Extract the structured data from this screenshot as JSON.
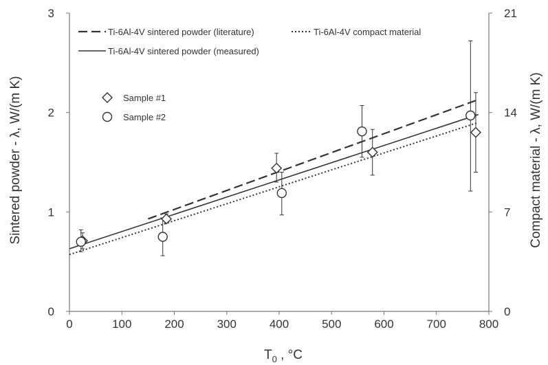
{
  "chart_data": {
    "type": "scatter",
    "xlabel_main": "T",
    "xlabel_sub": "0",
    "xlabel_rest": " , °C",
    "ylabel_left": "Sintered powder - λ, W/(m K)",
    "ylabel_right": "Compact material - λ, W/(m K)",
    "xlim": [
      0,
      800
    ],
    "ylim_left": [
      0,
      3
    ],
    "ylim_right": [
      0,
      21
    ],
    "x_ticks": [
      0,
      100,
      200,
      300,
      400,
      500,
      600,
      700,
      800
    ],
    "y_ticks_left": [
      0,
      1,
      2,
      3
    ],
    "y_ticks_right": [
      0,
      7,
      14,
      21
    ],
    "lines": [
      {
        "name": "Ti-6Al-4V sintered powder (literature)",
        "style": "dashed",
        "axis": "left",
        "x": [
          150,
          780
        ],
        "y": [
          0.93,
          2.13
        ]
      },
      {
        "name": "Ti-6Al-4V compact material",
        "style": "dotted",
        "axis": "right",
        "x": [
          0,
          780
        ],
        "y": [
          4.0,
          13.3
        ]
      },
      {
        "name": "Ti-6Al-4V sintered powder (measured)",
        "style": "solid",
        "axis": "left",
        "x": [
          0,
          780
        ],
        "y": [
          0.63,
          1.98
        ]
      }
    ],
    "series": [
      {
        "name": "Sample #1",
        "marker": "diamond",
        "points": [
          {
            "x": 25,
            "y": 0.71,
            "err_low": 0.63,
            "err_high": 0.79
          },
          {
            "x": 185,
            "y": 0.93,
            "err_low": 0.89,
            "err_high": 0.98
          },
          {
            "x": 395,
            "y": 1.44,
            "err_low": 1.3,
            "err_high": 1.59
          },
          {
            "x": 578,
            "y": 1.6,
            "err_low": 1.37,
            "err_high": 1.83
          },
          {
            "x": 775,
            "y": 1.8,
            "err_low": 1.4,
            "err_high": 2.2
          }
        ]
      },
      {
        "name": "Sample #2",
        "marker": "circle",
        "points": [
          {
            "x": 22,
            "y": 0.7,
            "err_low": 0.6,
            "err_high": 0.82
          },
          {
            "x": 178,
            "y": 0.75,
            "err_low": 0.56,
            "err_high": 0.94
          },
          {
            "x": 405,
            "y": 1.19,
            "err_low": 0.97,
            "err_high": 1.4
          },
          {
            "x": 558,
            "y": 1.81,
            "err_low": 1.55,
            "err_high": 2.07
          },
          {
            "x": 765,
            "y": 1.97,
            "err_low": 1.21,
            "err_high": 2.72
          }
        ]
      }
    ],
    "line_legend_placement": "top-left",
    "marker_legend_placement": "upper-left",
    "grid": false,
    "colors": {
      "ink": "#333333",
      "axis": "#777777"
    }
  }
}
